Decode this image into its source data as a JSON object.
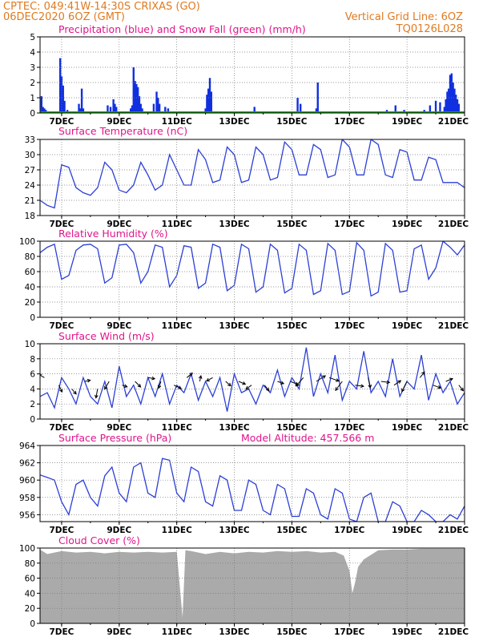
{
  "header": {
    "line1": "CPTEC:   049:41W-14:30S   CRIXAS (GO)",
    "line2": "06DEC2020 6OZ (GMT)",
    "grid_note": "Vertical Grid Line: 6OZ",
    "code": "TQ0126L028"
  },
  "colors": {
    "header": "#e07a1f",
    "title": "#e0148c",
    "precip": "#1030e0",
    "snow": "#20a020",
    "line": "#2b3fd6",
    "cloud": "#aaaaaa"
  },
  "x_axis": {
    "labels": [
      "7DEC",
      "9DEC",
      "11DEC",
      "13DEC",
      "15DEC",
      "17DEC",
      "19DEC",
      "21DEC"
    ],
    "label_days": [
      7,
      9,
      11,
      13,
      15,
      17,
      19,
      21
    ],
    "start_day": 6.25,
    "end_day": 21
  },
  "chart_data": [
    {
      "type": "bar",
      "title": "Precipitation (blue) and Snow Fall (green) (mm/h)",
      "ylim": [
        0,
        5
      ],
      "yticks": [
        0,
        1,
        2,
        3,
        4,
        5
      ],
      "series": [
        {
          "name": "Precipitation",
          "x": [
            6.3,
            6.35,
            6.4,
            6.45,
            6.5,
            6.95,
            7.0,
            7.05,
            7.1,
            7.2,
            7.6,
            7.65,
            7.7,
            7.75,
            7.8,
            8.0,
            8.5,
            8.6,
            8.7,
            8.8,
            8.85,
            8.9,
            9.4,
            9.45,
            9.5,
            9.55,
            9.6,
            9.65,
            9.7,
            9.75,
            9.8,
            10.2,
            10.3,
            10.35,
            10.4,
            10.6,
            10.7,
            12.0,
            12.05,
            12.1,
            12.15,
            12.2,
            13.4,
            13.7,
            14.0,
            14.7,
            14.8,
            15.2,
            15.3,
            15.85,
            15.9,
            16.7,
            17.6,
            17.7,
            18.0,
            18.3,
            18.6,
            18.9,
            19.0,
            19.6,
            19.8,
            20.0,
            20.15,
            20.3,
            20.35,
            20.4,
            20.45,
            20.5,
            20.55,
            20.6,
            20.65,
            20.7,
            20.75,
            20.8
          ],
          "values": [
            1.1,
            0.4,
            0.3,
            0.2,
            0.1,
            3.6,
            2.4,
            1.8,
            0.8,
            0.2,
            0.6,
            0.3,
            1.6,
            0.3,
            0.1,
            0.1,
            0.1,
            0.5,
            0.4,
            0.9,
            0.6,
            0.4,
            0.3,
            0.5,
            3.0,
            2.1,
            1.9,
            1.7,
            1.1,
            0.6,
            0.3,
            0.6,
            1.4,
            1.0,
            0.6,
            0.4,
            0.3,
            0.3,
            1.2,
            1.6,
            2.3,
            1.4,
            0.1,
            0.4,
            0.1,
            0.1,
            0.1,
            1.0,
            0.6,
            0.3,
            2.0,
            0.1,
            0.1,
            0.1,
            0.1,
            0.2,
            0.5,
            0.2,
            0.1,
            0.2,
            0.5,
            0.8,
            0.7,
            0.4,
            0.9,
            1.4,
            1.6,
            2.5,
            2.6,
            2.0,
            1.6,
            1.2,
            0.9,
            0.6
          ]
        },
        {
          "name": "Snow Fall",
          "x": [
            6.25,
            21
          ],
          "values": [
            0,
            0
          ]
        }
      ]
    },
    {
      "type": "line",
      "title": "Surface Temperature (nC)",
      "ylim": [
        18,
        33
      ],
      "yticks": [
        18,
        21,
        24,
        27,
        30,
        33
      ],
      "x": [
        6.25,
        6.5,
        6.75,
        7.0,
        7.25,
        7.5,
        7.75,
        8.0,
        8.25,
        8.5,
        8.75,
        9.0,
        9.25,
        9.5,
        9.75,
        10.0,
        10.25,
        10.5,
        10.75,
        11.0,
        11.25,
        11.5,
        11.75,
        12.0,
        12.25,
        12.5,
        12.75,
        13.0,
        13.25,
        13.5,
        13.75,
        14.0,
        14.25,
        14.5,
        14.75,
        15.0,
        15.25,
        15.5,
        15.75,
        16.0,
        16.25,
        16.5,
        16.75,
        17.0,
        17.25,
        17.5,
        17.75,
        18.0,
        18.25,
        18.5,
        18.75,
        19.0,
        19.25,
        19.5,
        19.75,
        20.0,
        20.25,
        20.5,
        20.75,
        21.0
      ],
      "values": [
        21.0,
        20.0,
        19.5,
        28.0,
        27.5,
        23.5,
        22.5,
        22.0,
        23.5,
        28.5,
        27.0,
        23.0,
        22.5,
        24.0,
        28.5,
        26.0,
        23.0,
        24.0,
        30.0,
        27.0,
        24.0,
        24.0,
        31.0,
        29.0,
        24.5,
        25.0,
        31.5,
        30.0,
        24.5,
        25.0,
        31.5,
        30.0,
        25.0,
        25.5,
        32.5,
        31.0,
        26.0,
        26.0,
        32.0,
        31.0,
        25.5,
        26.0,
        33.0,
        31.5,
        26.0,
        26.0,
        33.0,
        32.0,
        26.0,
        25.5,
        31.0,
        30.5,
        25.0,
        25.0,
        29.5,
        29.0,
        24.5,
        24.5,
        24.5,
        23.5
      ]
    },
    {
      "type": "line",
      "title": "Relative Humidity (%)",
      "ylim": [
        0,
        100
      ],
      "yticks": [
        0,
        20,
        40,
        60,
        80,
        100
      ],
      "x": [
        6.25,
        6.5,
        6.75,
        7.0,
        7.25,
        7.5,
        7.75,
        8.0,
        8.25,
        8.5,
        8.75,
        9.0,
        9.25,
        9.5,
        9.75,
        10.0,
        10.25,
        10.5,
        10.75,
        11.0,
        11.25,
        11.5,
        11.75,
        12.0,
        12.25,
        12.5,
        12.75,
        13.0,
        13.25,
        13.5,
        13.75,
        14.0,
        14.25,
        14.5,
        14.75,
        15.0,
        15.25,
        15.5,
        15.75,
        16.0,
        16.25,
        16.5,
        16.75,
        17.0,
        17.25,
        17.5,
        17.75,
        18.0,
        18.25,
        18.5,
        18.75,
        19.0,
        19.25,
        19.5,
        19.75,
        20.0,
        20.25,
        20.5,
        20.75,
        21.0
      ],
      "values": [
        85,
        92,
        96,
        50,
        55,
        88,
        95,
        96,
        90,
        45,
        52,
        95,
        96,
        85,
        45,
        60,
        95,
        92,
        40,
        55,
        94,
        92,
        38,
        45,
        96,
        92,
        35,
        42,
        96,
        90,
        33,
        40,
        96,
        88,
        32,
        38,
        96,
        88,
        30,
        35,
        97,
        88,
        30,
        34,
        98,
        88,
        28,
        33,
        97,
        88,
        33,
        35,
        90,
        95,
        50,
        65,
        100,
        92,
        82,
        95
      ]
    },
    {
      "type": "line",
      "title": "Surface Wind (m/s)",
      "ylim": [
        0,
        10
      ],
      "yticks": [
        0,
        2,
        4,
        6,
        8,
        10
      ],
      "x": [
        6.25,
        6.5,
        6.75,
        7.0,
        7.25,
        7.5,
        7.75,
        8.0,
        8.25,
        8.5,
        8.75,
        9.0,
        9.25,
        9.5,
        9.75,
        10.0,
        10.25,
        10.5,
        10.75,
        11.0,
        11.25,
        11.5,
        11.75,
        12.0,
        12.25,
        12.5,
        12.75,
        13.0,
        13.25,
        13.5,
        13.75,
        14.0,
        14.25,
        14.5,
        14.75,
        15.0,
        15.25,
        15.5,
        15.75,
        16.0,
        16.25,
        16.5,
        16.75,
        17.0,
        17.25,
        17.5,
        17.75,
        18.0,
        18.25,
        18.5,
        18.75,
        19.0,
        19.25,
        19.5,
        19.75,
        20.0,
        20.25,
        20.5,
        20.75,
        21.0
      ],
      "values": [
        3.0,
        3.5,
        1.5,
        5.5,
        4.0,
        2.0,
        5.5,
        3.0,
        2.0,
        5.0,
        1.5,
        7.0,
        3.0,
        4.5,
        2.0,
        5.5,
        3.0,
        6.0,
        2.0,
        4.5,
        3.5,
        6.0,
        2.5,
        5.0,
        3.0,
        5.5,
        1.0,
        6.0,
        3.5,
        4.0,
        2.0,
        4.5,
        3.5,
        6.5,
        3.0,
        5.5,
        4.0,
        9.5,
        3.0,
        6.0,
        3.5,
        8.5,
        2.5,
        5.0,
        4.0,
        9.0,
        3.5,
        5.0,
        3.0,
        8.0,
        3.0,
        5.0,
        4.0,
        8.5,
        2.5,
        6.0,
        3.5,
        5.0,
        2.0,
        3.5
      ],
      "arrows": {
        "x": [
          6.4,
          6.9,
          7.35,
          7.8,
          8.25,
          8.65,
          9.1,
          9.55,
          10.0,
          10.45,
          10.9,
          11.35,
          11.8,
          12.25,
          12.7,
          13.15,
          13.6,
          14.05,
          14.5,
          14.95,
          15.4,
          15.85,
          16.3,
          16.75,
          17.2,
          17.65,
          18.1,
          18.55,
          19.0,
          19.45,
          19.9,
          20.35,
          20.8
        ],
        "y": [
          5.5,
          4.5,
          4.0,
          5.0,
          4.0,
          5.0,
          4.5,
          5.0,
          5.5,
          5.0,
          4.5,
          5.5,
          5.0,
          5.5,
          5.0,
          5.0,
          4.5,
          4.5,
          5.0,
          5.0,
          5.5,
          5.0,
          5.5,
          5.0,
          4.5,
          5.5,
          5.0,
          4.5,
          5.0,
          5.5,
          4.5,
          5.0,
          4.5
        ],
        "u": [
          -1.0,
          0.6,
          0.8,
          1.0,
          -0.3,
          -0.8,
          0.9,
          1.0,
          1.2,
          -0.4,
          1.3,
          1.0,
          0.2,
          -1.1,
          0.9,
          1.2,
          -1.0,
          0.8,
          1.1,
          1.4,
          -1.3,
          1.6,
          1.7,
          -1.2,
          1.5,
          0.4,
          1.5,
          1.2,
          -0.9,
          0.8,
          1.4,
          1.2,
          0.8
        ],
        "v": [
          0.6,
          -1.2,
          -0.9,
          0.2,
          -1.6,
          -1.4,
          -0.3,
          -1.0,
          -0.2,
          -1.2,
          -0.6,
          0.8,
          1.0,
          -0.6,
          -0.8,
          -0.5,
          -0.7,
          -1.0,
          -0.4,
          -0.6,
          -1.5,
          1.0,
          -0.6,
          -1.6,
          -0.2,
          -1.8,
          -0.2,
          0.8,
          -1.8,
          1.0,
          -0.5,
          0.5,
          -1.0
        ]
      }
    },
    {
      "type": "line",
      "title": "Surface Pressure (hPa)",
      "annotation": "Model Altitude: 457.566 m",
      "ylim": [
        955.2,
        964
      ],
      "yticks": [
        956,
        958,
        960,
        962,
        964
      ],
      "x": [
        6.25,
        6.5,
        6.75,
        7.0,
        7.25,
        7.5,
        7.75,
        8.0,
        8.25,
        8.5,
        8.75,
        9.0,
        9.25,
        9.5,
        9.75,
        10.0,
        10.25,
        10.5,
        10.75,
        11.0,
        11.25,
        11.5,
        11.75,
        12.0,
        12.25,
        12.5,
        12.75,
        13.0,
        13.25,
        13.5,
        13.75,
        14.0,
        14.25,
        14.5,
        14.75,
        15.0,
        15.25,
        15.5,
        15.75,
        16.0,
        16.25,
        16.5,
        16.75,
        17.0,
        17.25,
        17.5,
        17.75,
        18.0,
        18.25,
        18.5,
        18.75,
        19.0,
        19.25,
        19.5,
        19.75,
        20.0,
        20.25,
        20.5,
        20.75,
        21.0
      ],
      "values": [
        960.6,
        960.3,
        960.0,
        957.5,
        956.0,
        959.5,
        960.0,
        958.0,
        957.0,
        960.5,
        961.5,
        958.5,
        957.5,
        961.5,
        962.0,
        958.5,
        958.0,
        962.5,
        962.3,
        958.5,
        957.5,
        961.5,
        961.0,
        957.5,
        957.0,
        960.5,
        960.0,
        956.5,
        956.5,
        960.0,
        959.5,
        956.5,
        956.0,
        959.5,
        959.0,
        955.8,
        955.8,
        959.0,
        958.5,
        956.0,
        955.5,
        959.0,
        958.5,
        955.5,
        955.0,
        958.0,
        958.5,
        955.0,
        954.8,
        957.5,
        957.0,
        954.8,
        954.5,
        956.5,
        956.0,
        954.2,
        954.0,
        956.0,
        955.5,
        957.0
      ]
    },
    {
      "type": "area",
      "title": "Cloud Cover (%)",
      "ylim": [
        0,
        100
      ],
      "yticks": [
        0,
        20,
        40,
        60,
        80,
        100
      ],
      "x": [
        6.25,
        6.5,
        7.0,
        7.5,
        8.0,
        8.5,
        9.0,
        9.5,
        10.0,
        10.5,
        11.0,
        11.2,
        11.3,
        11.5,
        12.0,
        12.5,
        13.0,
        13.5,
        14.0,
        14.5,
        15.0,
        15.5,
        16.0,
        16.5,
        16.8,
        17.0,
        17.1,
        17.2,
        17.3,
        17.5,
        18.0,
        18.5,
        19.0,
        19.5,
        20.0,
        20.5,
        21.0
      ],
      "values": [
        98,
        92,
        96,
        94,
        95,
        93,
        95,
        94,
        95,
        94,
        95,
        8,
        97,
        96,
        92,
        95,
        93,
        95,
        94,
        96,
        95,
        96,
        94,
        95,
        90,
        70,
        40,
        55,
        75,
        85,
        97,
        98,
        98,
        99,
        99,
        99,
        99
      ]
    }
  ]
}
